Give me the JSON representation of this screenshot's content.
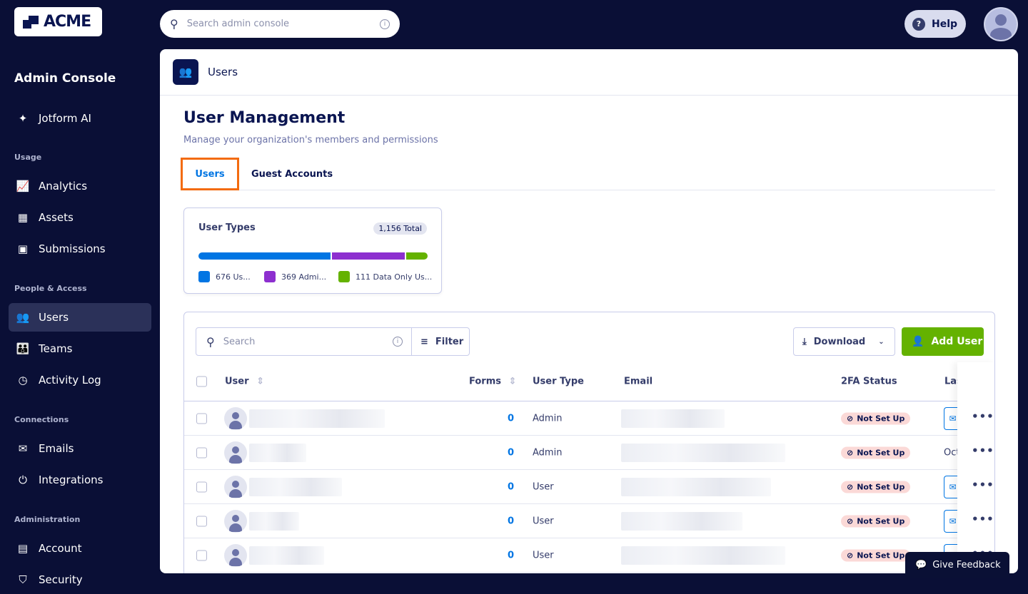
{
  "brand": {
    "name": "ACME"
  },
  "header": {
    "search_placeholder": "Search admin console",
    "help_label": "Help"
  },
  "sidebar": {
    "title": "Admin Console",
    "items": [
      {
        "label": "Jotform AI",
        "icon": "sparkle-icon"
      }
    ],
    "sections": [
      {
        "label": "Usage",
        "items": [
          {
            "label": "Analytics",
            "icon": "chart-icon"
          },
          {
            "label": "Assets",
            "icon": "grid-icon"
          },
          {
            "label": "Submissions",
            "icon": "inbox-icon"
          }
        ]
      },
      {
        "label": "People & Access",
        "items": [
          {
            "label": "Users",
            "icon": "users-icon",
            "active": true
          },
          {
            "label": "Teams",
            "icon": "team-icon"
          },
          {
            "label": "Activity Log",
            "icon": "clock-icon"
          }
        ]
      },
      {
        "label": "Connections",
        "items": [
          {
            "label": "Emails",
            "icon": "mail-icon"
          },
          {
            "label": "Integrations",
            "icon": "plug-icon"
          }
        ]
      },
      {
        "label": "Administration",
        "items": [
          {
            "label": "Account",
            "icon": "billing-icon"
          },
          {
            "label": "Security",
            "icon": "shield-icon"
          }
        ]
      }
    ]
  },
  "page": {
    "breadcrumb": "Users",
    "title": "User Management",
    "subtitle": "Manage your organization's members and permissions",
    "tabs": [
      {
        "label": "Users",
        "active": true
      },
      {
        "label": "Guest Accounts"
      }
    ]
  },
  "user_types": {
    "title": "User Types",
    "total": "1,156 Total",
    "segments": [
      {
        "label": "676 Us...",
        "value": 676,
        "color": "#0075e3"
      },
      {
        "label": "369 Admi...",
        "value": 369,
        "color": "#8d2fcf"
      },
      {
        "label": "111 Data Only Us...",
        "value": 111,
        "color": "#64b200"
      }
    ]
  },
  "table": {
    "search_placeholder": "Search",
    "filter_label": "Filter",
    "download_label": "Download",
    "add_user_label": "Add User",
    "columns": [
      "User",
      "Forms",
      "User Type",
      "Email",
      "2FA Status",
      "Las"
    ],
    "rows": [
      {
        "forms": "0",
        "type": "Admin",
        "tfa": "Not Set Up",
        "last": "mail"
      },
      {
        "forms": "0",
        "type": "Admin",
        "tfa": "Not Set Up",
        "last": "Oct"
      },
      {
        "forms": "0",
        "type": "User",
        "tfa": "Not Set Up",
        "last": "mail"
      },
      {
        "forms": "0",
        "type": "User",
        "tfa": "Not Set Up",
        "last": "mail"
      },
      {
        "forms": "0",
        "type": "User",
        "tfa": "Not Set Up",
        "last": "mail"
      }
    ]
  },
  "feedback_label": "Give Feedback"
}
